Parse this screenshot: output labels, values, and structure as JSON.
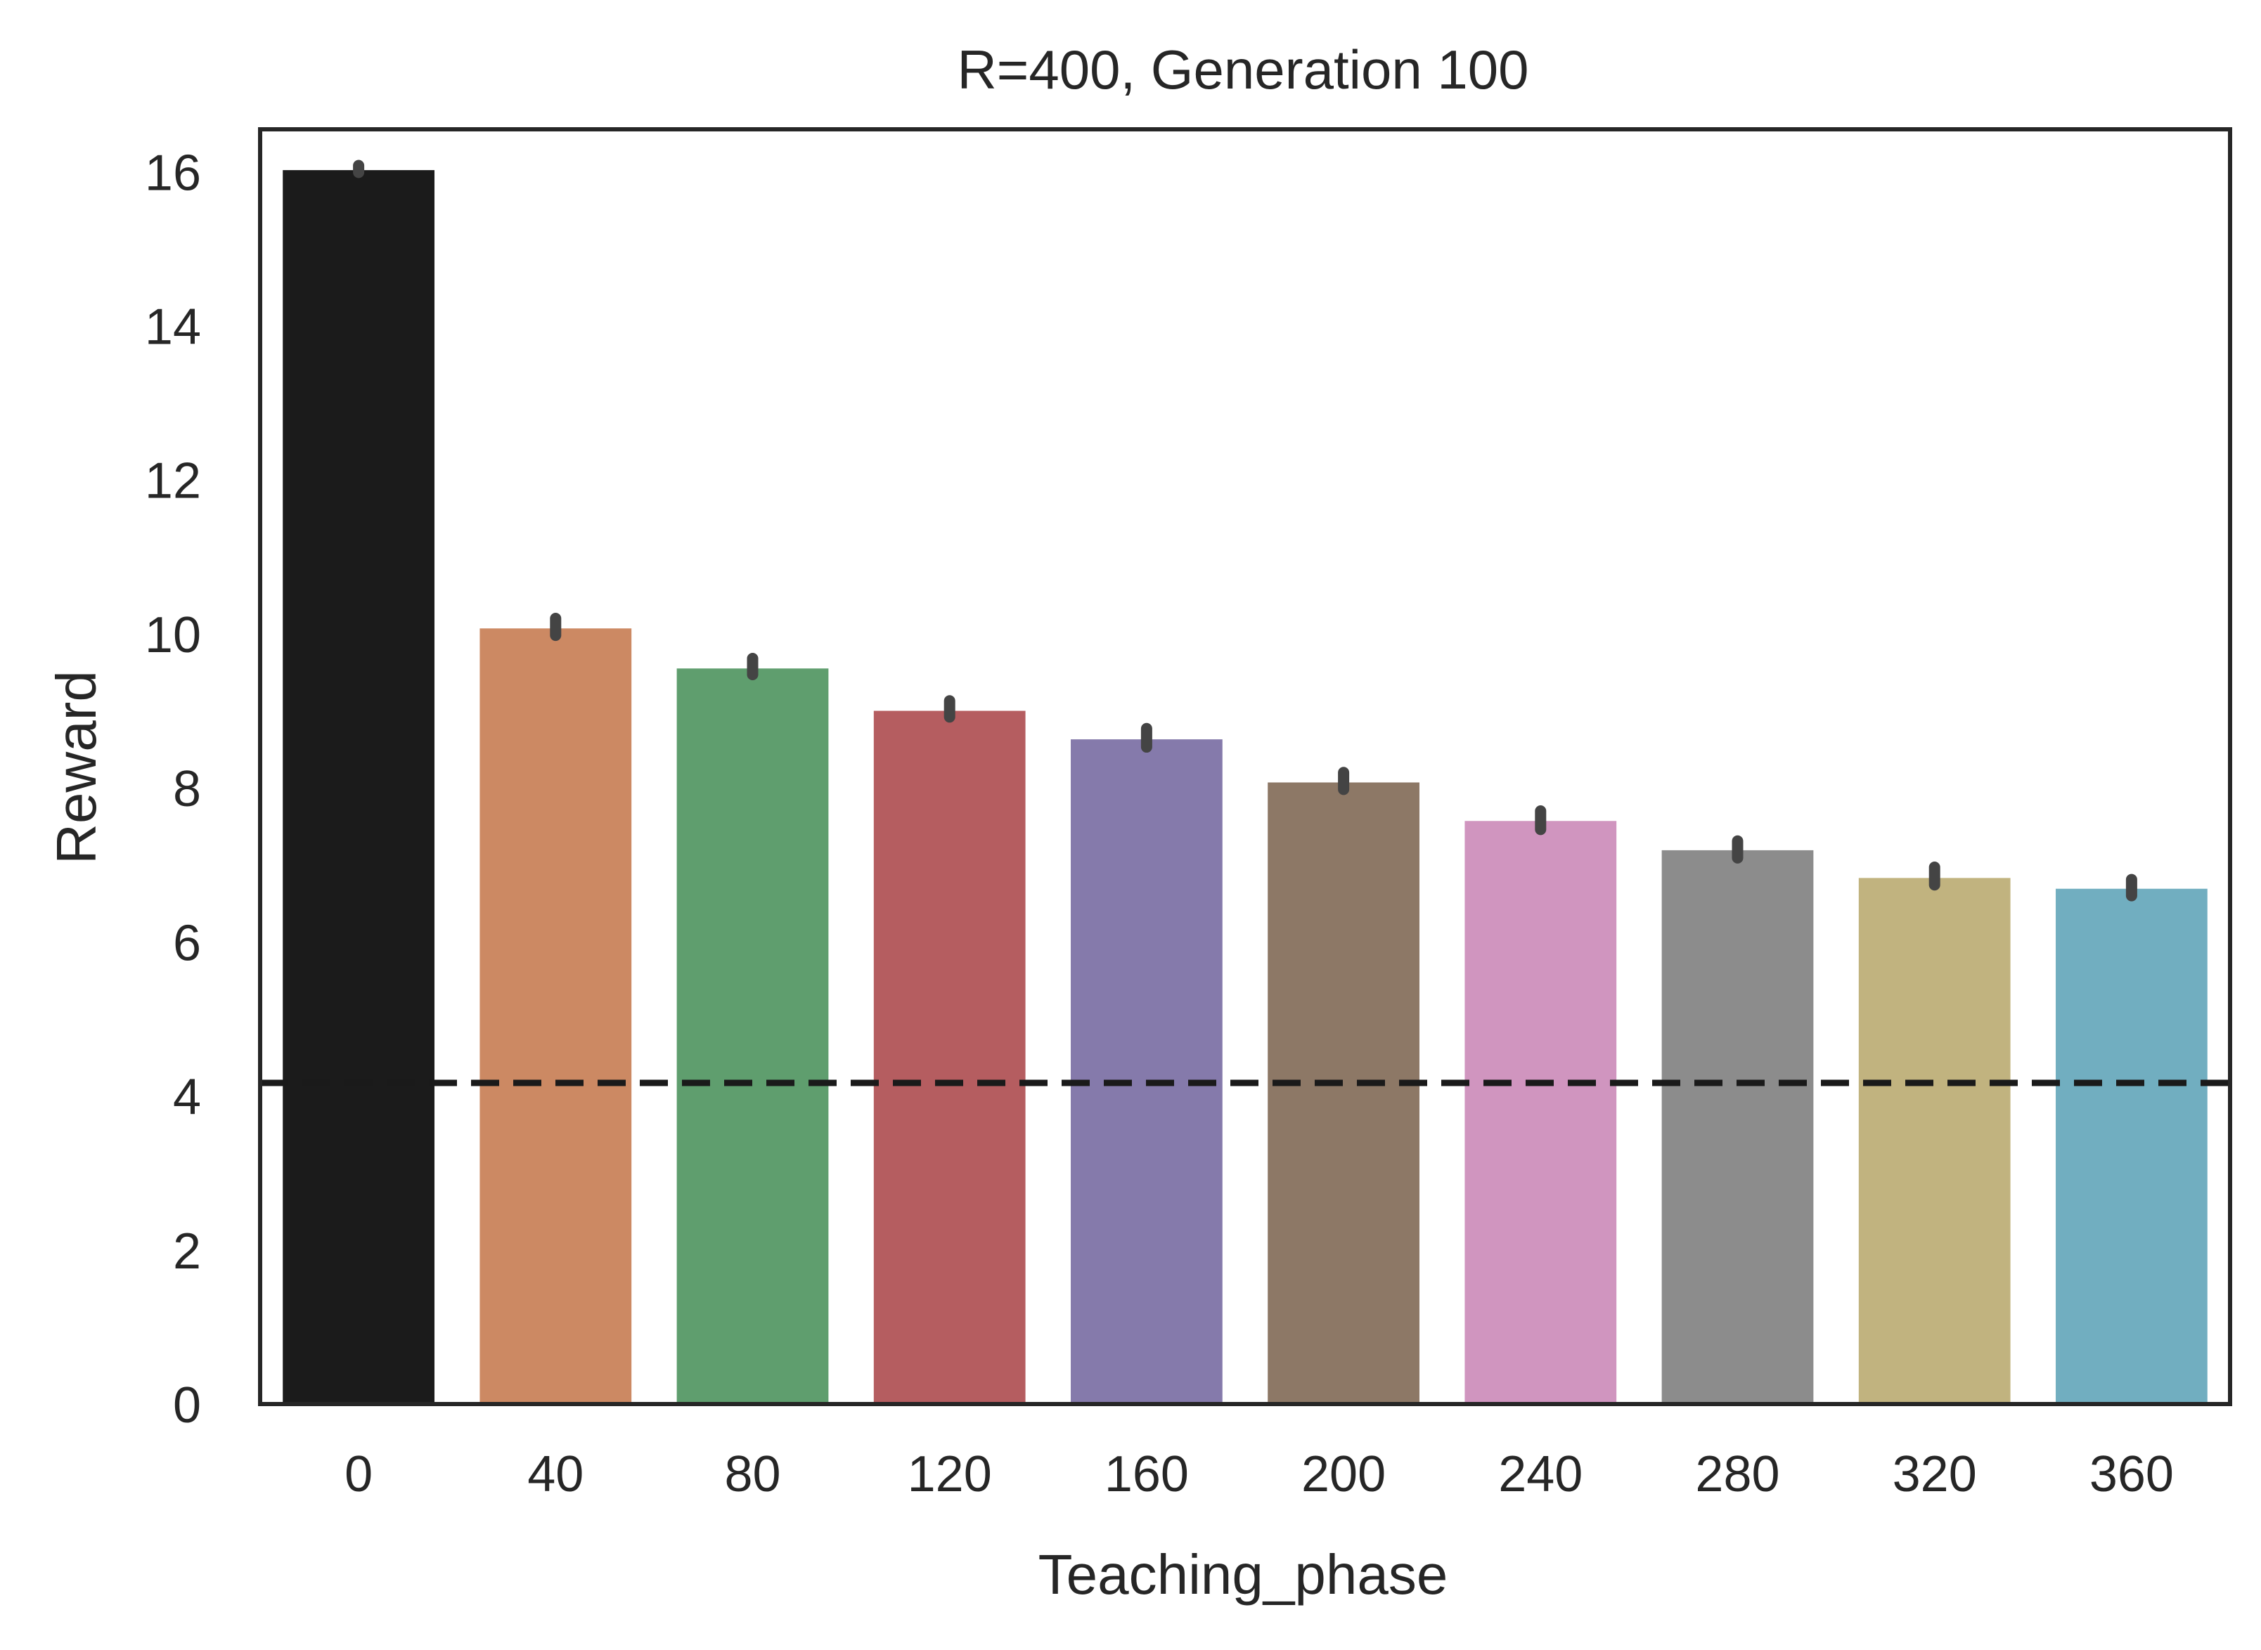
{
  "chart_data": {
    "type": "bar",
    "title": "R=400, Generation 100",
    "xlabel": "Teaching_phase",
    "ylabel": "Reward",
    "categories": [
      "0",
      "40",
      "80",
      "120",
      "160",
      "200",
      "240",
      "280",
      "320",
      "360"
    ],
    "values": [
      16.02,
      10.07,
      9.55,
      9.0,
      8.63,
      8.07,
      7.57,
      7.19,
      6.83,
      6.69
    ],
    "error_bars": [
      [
        15.99,
        16.08
      ],
      [
        9.98,
        10.2
      ],
      [
        9.47,
        9.68
      ],
      [
        8.92,
        9.13
      ],
      [
        8.53,
        8.77
      ],
      [
        7.98,
        8.2
      ],
      [
        7.46,
        7.7
      ],
      [
        7.09,
        7.31
      ],
      [
        6.74,
        6.97
      ],
      [
        6.6,
        6.81
      ]
    ],
    "colors": [
      "#1b1b1b",
      "#cc8963",
      "#5f9e6e",
      "#b55d60",
      "#857aab",
      "#8d7866",
      "#d095bf",
      "#8c8c8c",
      "#c1b37f",
      "#71aec0"
    ],
    "error_color": "#444444",
    "reference_line": {
      "y": 4.17,
      "style": "dashed",
      "color": "#1a1a1a"
    },
    "ylim": [
      0,
      16.55
    ],
    "yticks": [
      0,
      2,
      4,
      6,
      8,
      10,
      12,
      14,
      16
    ],
    "grid": false
  }
}
